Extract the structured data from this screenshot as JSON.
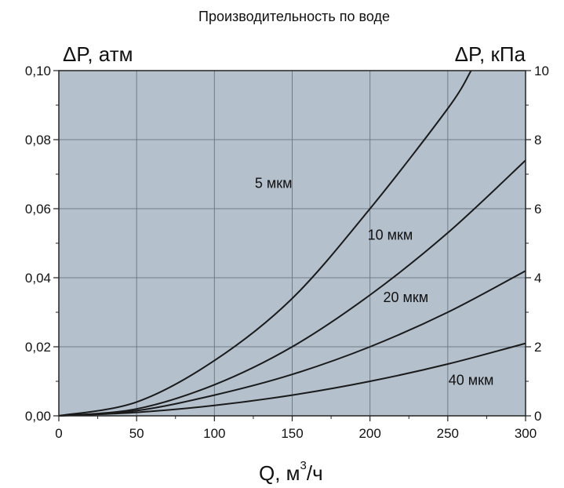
{
  "chart_data": {
    "type": "line",
    "title": "Производительность по воде",
    "left_axis_label": "ΔP, атм",
    "right_axis_label": "ΔP, кПа",
    "xlabel_main": "Q, м",
    "xlabel_sup": "3",
    "xlabel_tail": "/ч",
    "xlim": [
      0,
      300
    ],
    "ylim": [
      0,
      0.1
    ],
    "y2lim": [
      0,
      10
    ],
    "x_ticks": [
      0,
      50,
      100,
      150,
      200,
      250,
      300
    ],
    "y_ticks": [
      0,
      0.02,
      0.04,
      0.06,
      0.08,
      0.1
    ],
    "y_tick_labels": [
      "0,00",
      "0,02",
      "0,04",
      "0,06",
      "0,08",
      "0,10"
    ],
    "y2_ticks": [
      0,
      2,
      4,
      6,
      8,
      10
    ],
    "y2_tick_labels": [
      "0",
      "2",
      "4",
      "6",
      "8",
      "10"
    ],
    "grid": true,
    "series": [
      {
        "name": "5 мкм",
        "x": [
          0,
          50,
          100,
          150,
          200,
          250,
          265
        ],
        "y": [
          0,
          0.004,
          0.016,
          0.034,
          0.06,
          0.089,
          0.1
        ]
      },
      {
        "name": "10 мкм",
        "x": [
          0,
          50,
          100,
          150,
          200,
          250,
          300
        ],
        "y": [
          0,
          0.002,
          0.009,
          0.02,
          0.035,
          0.053,
          0.074
        ]
      },
      {
        "name": "20 мкм",
        "x": [
          0,
          50,
          100,
          150,
          200,
          250,
          300
        ],
        "y": [
          0,
          0.0015,
          0.006,
          0.012,
          0.02,
          0.03,
          0.042
        ]
      },
      {
        "name": "40 мкм",
        "x": [
          0,
          50,
          100,
          150,
          200,
          250,
          300
        ],
        "y": [
          0,
          0.001,
          0.003,
          0.006,
          0.01,
          0.015,
          0.021
        ]
      }
    ],
    "colors": {
      "plot_bg": "#b4c0cc",
      "grid": "#6f7b86",
      "line": "#1a1a1a"
    }
  }
}
